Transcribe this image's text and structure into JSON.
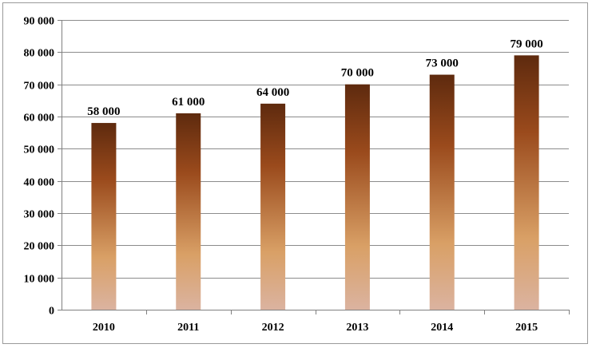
{
  "chart_data": {
    "type": "bar",
    "title": "",
    "xlabel": "",
    "ylabel": "",
    "categories": [
      "2010",
      "2011",
      "2012",
      "2013",
      "2014",
      "2015"
    ],
    "values": [
      58000,
      61000,
      64000,
      70000,
      73000,
      79000
    ],
    "data_labels": [
      "58 000",
      "61 000",
      "64 000",
      "70 000",
      "73 000",
      "79 000"
    ],
    "ylim": [
      0,
      90000
    ],
    "yticks": [
      0,
      10000,
      20000,
      30000,
      40000,
      50000,
      60000,
      70000,
      80000,
      90000
    ],
    "ytick_labels": [
      "0",
      "10 000",
      "20 000",
      "30 000",
      "40 000",
      "50 000",
      "60 000",
      "70 000",
      "80 000",
      "90 000"
    ],
    "grid": true,
    "legend": "none",
    "bar_gradient": [
      "#5e2a0e",
      "#9a4a1c",
      "#d9a066",
      "#dbb3a0"
    ]
  }
}
